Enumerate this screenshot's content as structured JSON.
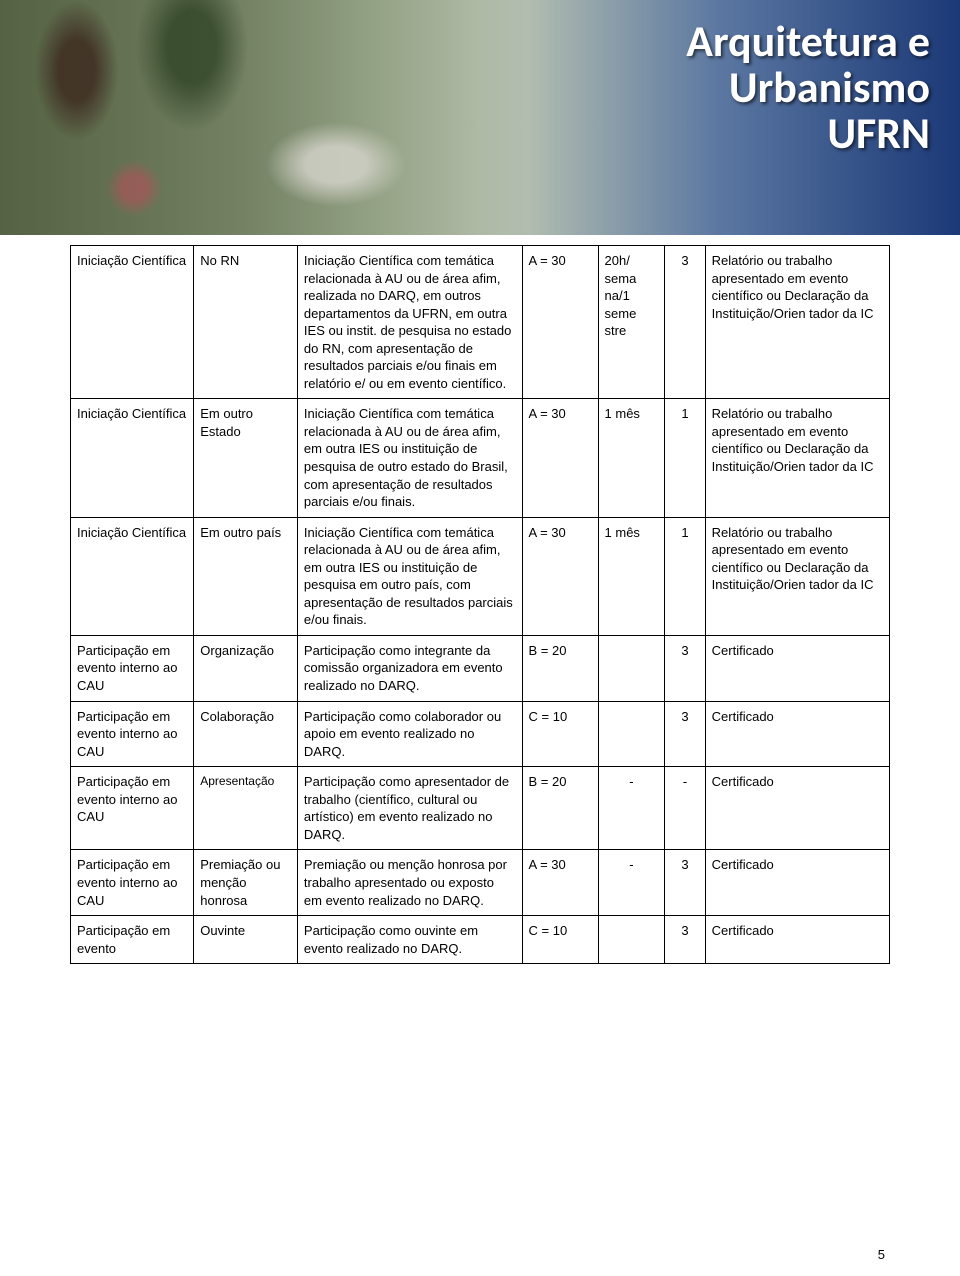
{
  "banner": {
    "line1": "Arquitetura e",
    "line2": "Urbanismo",
    "line3": "UFRN"
  },
  "page_number": "5",
  "colors": {
    "text": "#000000",
    "border": "#000000",
    "background": "#ffffff",
    "banner_text": "#ffffff",
    "banner_gradient_right": "#1a3770"
  },
  "table": {
    "font_size_pt": 10,
    "rows": [
      {
        "activity": "Iniciação Científica",
        "context": "No RN",
        "desc": "Iniciação Científica com temática relacionada à AU ou de área afim, realizada no DARQ, em outros departamentos da UFRN, em outra IES ou instit. de pesquisa no estado do RN, com apresentação de resultados parciais e/ou finais em relatório e/ ou em evento científico.",
        "score": "A = 30",
        "duration": "20h/ sema na/1 seme stre",
        "qty": "3",
        "doc": "Relatório ou trabalho apresentado em evento científico ou Declaração da Instituição/Orien tador da IC"
      },
      {
        "activity": "Iniciação Científica",
        "context": "Em outro Estado",
        "desc": "Iniciação Científica com temática relacionada à AU ou de área afim, em outra IES ou instituição de pesquisa de outro estado do Brasil, com apresentação de resultados parciais e/ou finais.",
        "score": "A = 30",
        "duration": "1 mês",
        "qty": "1",
        "doc": "Relatório ou trabalho apresentado em evento científico ou Declaração da Instituição/Orien tador da IC"
      },
      {
        "activity": "Iniciação Científica",
        "context": "Em outro país",
        "desc": "Iniciação Científica com temática relacionada à AU ou de área afim, em outra IES ou instituição de pesquisa em outro país, com apresentação de resultados parciais e/ou finais.",
        "score": "A = 30",
        "duration": "1 mês",
        "qty": "1",
        "doc": "Relatório ou trabalho apresentado em evento científico ou Declaração da Instituição/Orien tador da IC"
      },
      {
        "activity": "Participação em evento interno ao CAU",
        "context": "Organização",
        "desc": "Participação como integrante da comissão organizadora em evento realizado no DARQ.",
        "score": "B = 20",
        "duration": "",
        "qty": "3",
        "doc": "Certificado"
      },
      {
        "activity": "Participação em evento interno ao CAU",
        "context": "Colaboração",
        "desc": "Participação como colaborador ou apoio em evento realizado no DARQ.",
        "score": "C = 10",
        "duration": "",
        "qty": "3",
        "doc": "Certificado"
      },
      {
        "activity": "Participação em evento interno ao CAU",
        "context": "Apresentação",
        "desc": "Participação como apresentador de trabalho (científico, cultural ou artístico) em evento realizado no DARQ.",
        "score": "B = 20",
        "duration": "-",
        "qty": "-",
        "doc": "Certificado"
      },
      {
        "activity": "Participação em evento interno ao CAU",
        "context": "Premiação ou menção honrosa",
        "desc": "Premiação ou menção honrosa por trabalho apresentado ou exposto em evento realizado no DARQ.",
        "score": "A = 30",
        "duration": "-",
        "qty": "3",
        "doc": "Certificado"
      },
      {
        "activity": "Participação em evento",
        "context": "Ouvinte",
        "desc": "Participação como ouvinte em evento realizado no DARQ.",
        "score": "C = 10",
        "duration": "",
        "qty": "3",
        "doc": "Certificado"
      }
    ]
  }
}
